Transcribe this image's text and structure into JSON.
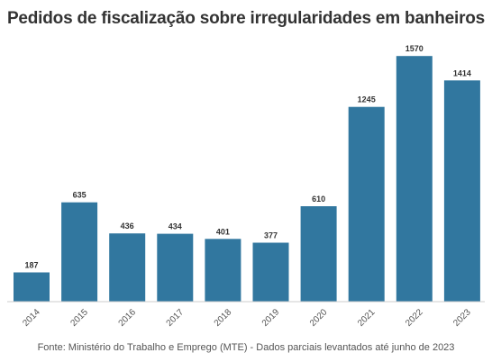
{
  "chart_data": {
    "type": "bar",
    "title": "Pedidos de fiscalização sobre irregularidades em banheiros",
    "categories": [
      "2014",
      "2015",
      "2016",
      "2017",
      "2018",
      "2019",
      "2020",
      "2021",
      "2022",
      "2023"
    ],
    "values": [
      187,
      635,
      436,
      434,
      401,
      377,
      610,
      1245,
      1570,
      1414
    ],
    "ylim": [
      0,
      1600
    ],
    "xlabel": "",
    "ylabel": "",
    "grid": false,
    "legend": "none",
    "bar_color": "#31779f",
    "source": "Fonte: Ministério do Trabalho e Emprego (MTE) - Dados parciais levantados até junho de 2023"
  }
}
